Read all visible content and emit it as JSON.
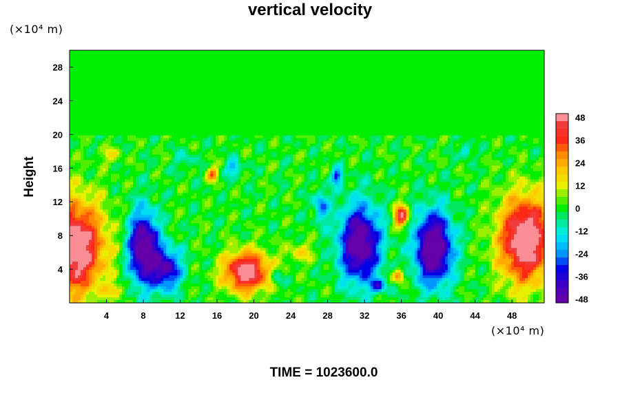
{
  "chart_data": {
    "type": "heatmap",
    "title": "vertical velocity",
    "xlabel": "",
    "ylabel": "Height",
    "x_unit": "(×10⁴ m)",
    "y_unit": "(×10⁴ m)",
    "footer": "TIME = 1023600.0",
    "xlim": [
      0,
      51.5
    ],
    "ylim": [
      0,
      30
    ],
    "x_ticks": [
      4,
      8,
      12,
      16,
      20,
      24,
      28,
      32,
      36,
      40,
      44,
      48
    ],
    "y_ticks": [
      4,
      8,
      12,
      16,
      20,
      24,
      28
    ],
    "colorbar": {
      "min": -50,
      "max": 50,
      "ticks": [
        48,
        36,
        24,
        12,
        0,
        -12,
        -24,
        -36,
        -48
      ],
      "levels": 25
    },
    "background_value": 0,
    "layer_top": 20,
    "features": [
      {
        "x": 0.5,
        "y": 6.5,
        "sx": 3.2,
        "sy": 5.5,
        "amp": 58
      },
      {
        "x": 49.5,
        "y": 7.5,
        "sx": 2.8,
        "sy": 5.0,
        "amp": 60
      },
      {
        "x": 19.2,
        "y": 3.7,
        "sx": 2.4,
        "sy": 2.3,
        "amp": 56
      },
      {
        "x": 8.0,
        "y": 6.5,
        "sx": 1.6,
        "sy": 4.2,
        "amp": -58
      },
      {
        "x": 10.5,
        "y": 4.0,
        "sx": 1.6,
        "sy": 2.5,
        "amp": -42
      },
      {
        "x": 31.5,
        "y": 7.0,
        "sx": 2.2,
        "sy": 4.5,
        "amp": -56
      },
      {
        "x": 39.5,
        "y": 6.5,
        "sx": 2.0,
        "sy": 4.2,
        "amp": -62
      },
      {
        "x": 36.0,
        "y": 10.3,
        "sx": 0.8,
        "sy": 1.3,
        "amp": 46
      },
      {
        "x": 35.7,
        "y": 3.2,
        "sx": 0.6,
        "sy": 0.8,
        "amp": 32
      },
      {
        "x": 15.5,
        "y": 15.3,
        "sx": 0.6,
        "sy": 0.8,
        "amp": 32
      },
      {
        "x": 17.8,
        "y": 16.0,
        "sx": 0.8,
        "sy": 1.0,
        "amp": -22
      },
      {
        "x": 29.0,
        "y": 15.0,
        "sx": 0.6,
        "sy": 1.0,
        "amp": -32
      },
      {
        "x": 27.3,
        "y": 11.5,
        "sx": 0.8,
        "sy": 1.8,
        "amp": -26
      },
      {
        "x": 43.0,
        "y": 18.0,
        "sx": 0.6,
        "sy": 0.8,
        "amp": -20
      },
      {
        "x": 22.5,
        "y": 3.0,
        "sx": 0.6,
        "sy": 1.0,
        "amp": -18
      },
      {
        "x": 33.5,
        "y": 2.0,
        "sx": 0.8,
        "sy": 0.8,
        "amp": -30
      },
      {
        "x": 5.0,
        "y": 1.5,
        "sx": 1.0,
        "sy": 0.8,
        "amp": 16
      },
      {
        "x": 25.0,
        "y": 6.0,
        "sx": 1.5,
        "sy": 1.2,
        "amp": 14
      },
      {
        "x": 4.5,
        "y": 17.5,
        "sx": 1.2,
        "sy": 1.0,
        "amp": 12
      },
      {
        "x": 12.5,
        "y": 17.0,
        "sx": 1.0,
        "sy": 1.2,
        "amp": -10
      }
    ]
  }
}
